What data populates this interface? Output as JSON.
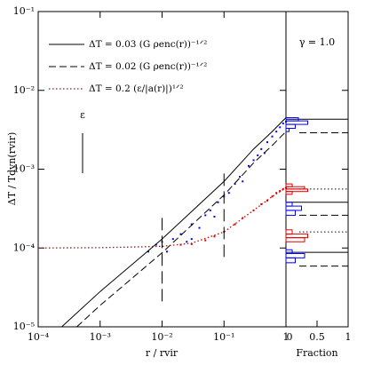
{
  "chart_data": {
    "type": "line",
    "xlabel": "r / rvir",
    "ylabel": "ΔT / Tdyn(rvir)",
    "xscale": "log",
    "yscale": "log",
    "xlim": [
      0.0001,
      1
    ],
    "ylim": [
      1e-05,
      0.1
    ],
    "xticks": [
      {
        "value": 0.0001,
        "label": "10⁻⁴"
      },
      {
        "value": 0.001,
        "label": "10⁻³"
      },
      {
        "value": 0.01,
        "label": "10⁻²"
      },
      {
        "value": 0.1,
        "label": "10⁻¹"
      },
      1
    ],
    "yticks": [
      {
        "value": 1e-05,
        "label": "10⁻⁵"
      },
      {
        "value": 0.0001,
        "label": "10⁻⁴"
      },
      {
        "value": 0.001,
        "label": "10⁻³"
      },
      {
        "value": 0.01,
        "label": "10⁻²"
      },
      {
        "value": 0.1,
        "label": "10⁻¹"
      }
    ],
    "series": [
      {
        "name": "ΔT = 0.03 (G ρenc(r))⁻¹ᐟ²",
        "style": "solid",
        "color": "#000000",
        "x": [
          0.00024,
          0.001,
          0.01,
          0.1,
          0.3,
          0.6,
          1
        ],
        "values": [
          1e-05,
          2.8e-05,
          0.00013,
          0.0007,
          0.0018,
          0.003,
          0.0045
        ]
      },
      {
        "name": "ΔT = 0.02 (G ρenc(r))⁻¹ᐟ²",
        "style": "dashed",
        "color": "#000000",
        "x": [
          0.00042,
          0.001,
          0.01,
          0.1,
          0.3,
          0.6,
          1
        ],
        "values": [
          1e-05,
          1.87e-05,
          8.7e-05,
          0.00047,
          0.0012,
          0.002,
          0.003
        ]
      },
      {
        "name": "ΔT = 0.2 (ε/|a(r)|)¹ᐟ²",
        "style": "dotted",
        "color": "#cc0000",
        "x": [
          0.0001,
          0.001,
          0.01,
          0.03,
          0.1,
          0.3,
          0.6,
          1
        ],
        "values": [
          0.0001,
          0.000101,
          0.000105,
          0.000115,
          0.00016,
          0.0003,
          0.00045,
          0.00058
        ]
      }
    ],
    "scatter": [
      {
        "color": "#0000ff",
        "x": [
          0.006,
          0.008,
          0.01,
          0.012,
          0.015,
          0.02,
          0.025,
          0.03,
          0.04,
          0.05,
          0.06,
          0.07,
          0.08,
          0.1,
          0.12,
          0.15,
          0.18,
          0.2,
          0.25,
          0.3,
          0.35,
          0.4,
          0.5,
          0.6,
          0.7,
          0.8,
          0.9,
          1,
          0.45,
          0.03
        ],
        "values": [
          9e-05,
          0.00011,
          0.00012,
          9e-05,
          0.00013,
          0.00015,
          0.00012,
          0.0002,
          0.00018,
          0.00026,
          0.0003,
          0.00025,
          0.00038,
          0.00045,
          0.0005,
          0.00065,
          0.0008,
          0.0007,
          0.0011,
          0.0013,
          0.0015,
          0.0018,
          0.0022,
          0.0026,
          0.003,
          0.0034,
          0.0038,
          0.004,
          0.0016,
          0.00013
        ]
      },
      {
        "color": "#dd0000",
        "x": [
          0.02,
          0.03,
          0.05,
          0.07,
          0.1,
          0.15,
          0.2,
          0.3,
          0.4,
          0.5,
          0.6,
          0.7,
          0.8,
          0.9,
          1
        ],
        "values": [
          0.00011,
          0.000112,
          0.000125,
          0.00014,
          0.00016,
          0.0002,
          0.00024,
          0.0003,
          0.00036,
          0.0004,
          0.00045,
          0.0005,
          0.00053,
          0.00056,
          0.00058
        ]
      }
    ],
    "vlines": [
      {
        "x": 0.01,
        "values": [
          2.1e-05,
          0.00025
        ]
      },
      {
        "x": 0.1,
        "values": [
          7.7e-05,
          0.0009
        ]
      }
    ],
    "epsilon_label": "ε",
    "side_panel": {
      "xlabel": "Fraction",
      "annotation": "γ = 1.0",
      "xlim": [
        0,
        1
      ],
      "xticks": [
        0,
        0.5,
        1
      ],
      "levels": [
        {
          "value": 0.0043,
          "style": "solid"
        },
        {
          "value": 0.0029,
          "style": "dashed"
        },
        {
          "value": 0.00056,
          "style": "dotted"
        },
        {
          "value": 0.00038,
          "style": "solid"
        },
        {
          "value": 0.00026,
          "style": "dashed"
        },
        {
          "value": 0.00016,
          "style": "dotted"
        },
        {
          "value": 8.8e-05,
          "style": "solid"
        },
        {
          "value": 5.9e-05,
          "style": "dashed"
        }
      ],
      "histograms": [
        {
          "color": "#0000ff",
          "bins": [
            0.003,
            0.0033,
            0.0037,
            0.0041,
            0.0045
          ],
          "counts": [
            0.05,
            0.15,
            0.35,
            0.2
          ]
        },
        {
          "color": "#dd0000",
          "bins": [
            0.00048,
            0.00052,
            0.00056,
            0.0006,
            0.00065
          ],
          "counts": [
            0.1,
            0.35,
            0.3,
            0.1
          ]
        },
        {
          "color": "#0000ff",
          "bins": [
            0.00026,
            0.0003,
            0.00034,
            0.00038
          ],
          "counts": [
            0.15,
            0.25,
            0.1
          ]
        },
        {
          "color": "#dd0000",
          "bins": [
            0.00012,
            0.000135,
            0.00015,
            0.00017
          ],
          "counts": [
            0.3,
            0.35,
            0.1
          ]
        },
        {
          "color": "#0000ff",
          "bins": [
            6.5e-05,
            7.5e-05,
            8.5e-05,
            9.5e-05
          ],
          "counts": [
            0.15,
            0.3,
            0.1
          ]
        }
      ]
    }
  }
}
